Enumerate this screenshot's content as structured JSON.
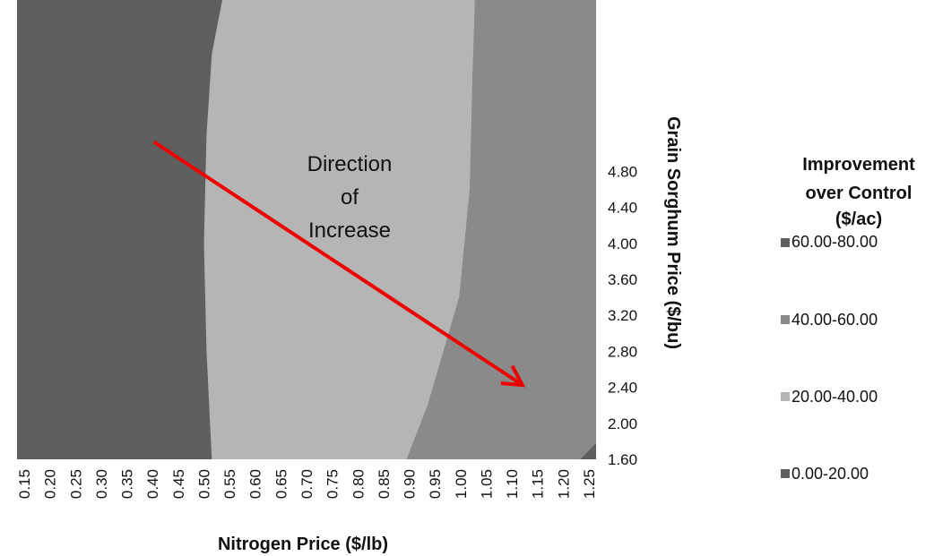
{
  "chart_data": {
    "type": "contour",
    "xlabel": "Nitrogen Price ($/lb)",
    "ylabel": "Grain Sorghum Price ($/bu)",
    "x_ticks": [
      "0.15",
      "0.20",
      "0.25",
      "0.30",
      "0.35",
      "0.40",
      "0.45",
      "0.50",
      "0.55",
      "0.60",
      "0.65",
      "0.70",
      "0.75",
      "0.80",
      "0.85",
      "0.90",
      "0.95",
      "1.00",
      "1.05",
      "1.10",
      "1.15",
      "1.20",
      "1.25"
    ],
    "y_ticks": [
      "1.60",
      "2.00",
      "2.40",
      "2.80",
      "3.20",
      "3.60",
      "4.00",
      "4.40",
      "4.80"
    ],
    "xlim": [
      0.15,
      1.25
    ],
    "ylim": [
      1.6,
      5.0
    ],
    "legend": {
      "title_lines": [
        "Improvement",
        "over Control",
        "($/ac)"
      ],
      "placement": "right",
      "items": [
        {
          "label": "60.00-80.00",
          "color": "#5f5f5f"
        },
        {
          "label": "40.00-60.00",
          "color": "#8a8a8a"
        },
        {
          "label": "20.00-40.00",
          "color": "#b5b5b5"
        },
        {
          "label": "0.00-20.00",
          "color": "#5f5f5f"
        }
      ]
    },
    "annotation": {
      "lines": [
        "Direction",
        "of",
        "Increase"
      ],
      "arrow_color": "#ee0000",
      "arrow_from": {
        "x": 0.41,
        "y": 3.95
      },
      "arrow_to": {
        "x": 1.11,
        "y": 2.15
      }
    },
    "regions": [
      {
        "range": "60.00-80.00",
        "color": "#5f5f5f",
        "boundary": [
          [
            0.52,
            1.6
          ],
          [
            0.51,
            2.4
          ],
          [
            0.505,
            3.2
          ],
          [
            0.51,
            4.0
          ],
          [
            0.52,
            4.6
          ],
          [
            0.54,
            5.0
          ]
        ]
      },
      {
        "range": "20.00-40.00",
        "color": "#b5b5b5",
        "boundary": [
          [
            0.89,
            1.6
          ],
          [
            0.93,
            2.0
          ],
          [
            0.99,
            2.8
          ],
          [
            1.01,
            3.6
          ],
          [
            1.015,
            4.4
          ],
          [
            1.02,
            5.0
          ]
        ]
      },
      {
        "range": "40.00-60.00",
        "color": "#8a8a8a",
        "boundary": [
          [
            1.22,
            1.6
          ],
          [
            1.25,
            1.72
          ]
        ]
      },
      {
        "range": "0.00-20.00",
        "color": "#5f5f5f"
      }
    ]
  }
}
